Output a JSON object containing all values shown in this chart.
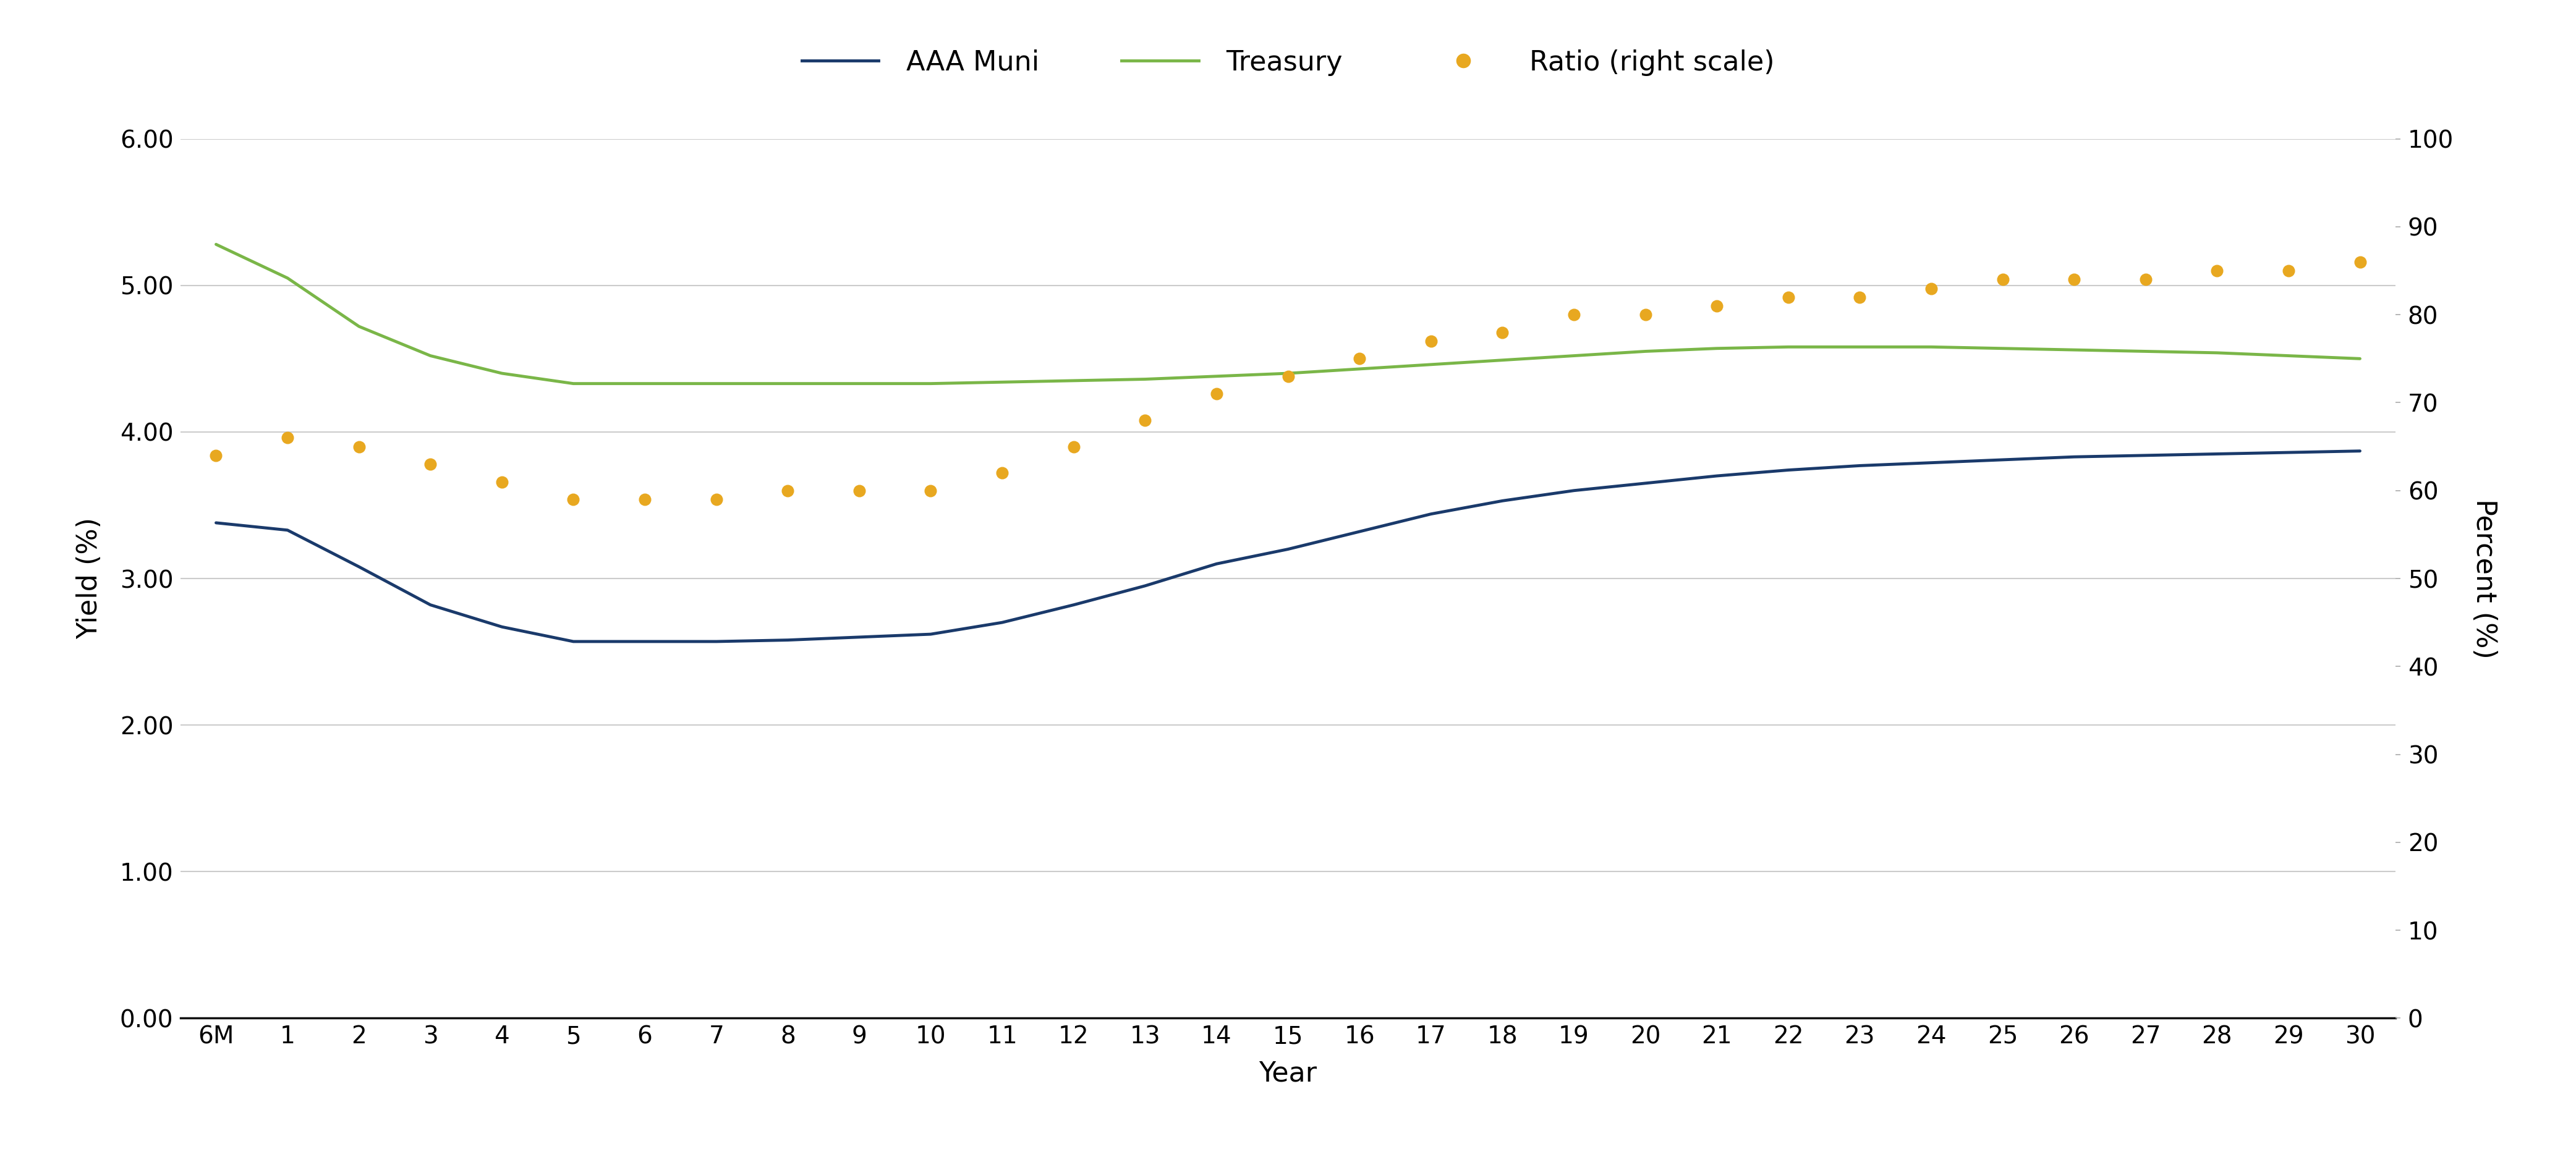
{
  "x_labels": [
    "6M",
    "1",
    "2",
    "3",
    "4",
    "5",
    "6",
    "7",
    "8",
    "9",
    "10",
    "11",
    "12",
    "13",
    "14",
    "15",
    "16",
    "17",
    "18",
    "19",
    "20",
    "21",
    "22",
    "23",
    "24",
    "25",
    "26",
    "27",
    "28",
    "29",
    "30"
  ],
  "x_numeric": [
    0,
    1,
    2,
    3,
    4,
    5,
    6,
    7,
    8,
    9,
    10,
    11,
    12,
    13,
    14,
    15,
    16,
    17,
    18,
    19,
    20,
    21,
    22,
    23,
    24,
    25,
    26,
    27,
    28,
    29,
    30
  ],
  "aaa_muni": [
    3.38,
    3.33,
    3.08,
    2.82,
    2.67,
    2.57,
    2.57,
    2.57,
    2.58,
    2.6,
    2.62,
    2.7,
    2.82,
    2.95,
    3.1,
    3.2,
    3.32,
    3.44,
    3.53,
    3.6,
    3.65,
    3.7,
    3.74,
    3.77,
    3.79,
    3.81,
    3.83,
    3.84,
    3.85,
    3.86,
    3.87
  ],
  "treasury": [
    5.28,
    5.05,
    4.72,
    4.52,
    4.4,
    4.33,
    4.33,
    4.33,
    4.33,
    4.33,
    4.33,
    4.34,
    4.35,
    4.36,
    4.38,
    4.4,
    4.43,
    4.46,
    4.49,
    4.52,
    4.55,
    4.57,
    4.58,
    4.58,
    4.58,
    4.57,
    4.56,
    4.55,
    4.54,
    4.52,
    4.5
  ],
  "ratio": [
    64,
    66,
    65,
    63,
    61,
    59,
    59,
    59,
    60,
    60,
    60,
    62,
    65,
    68,
    71,
    73,
    75,
    77,
    78,
    80,
    80,
    81,
    82,
    82,
    83,
    84,
    84,
    84,
    85,
    85,
    86
  ],
  "aaa_color": "#1a3a6b",
  "treasury_color": "#7ab648",
  "ratio_color": "#e8a820",
  "ylabel_left": "Yield (%)",
  "ylabel_right": "Percent (%)",
  "xlabel": "Year",
  "ylim_left": [
    0.0,
    6.0
  ],
  "ylim_right": [
    0,
    100
  ],
  "yticks_left": [
    0.0,
    1.0,
    2.0,
    3.0,
    4.0,
    5.0,
    6.0
  ],
  "ytick_labels_left": [
    "0.00",
    "1.00",
    "2.00",
    "3.00",
    "4.00",
    "5.00",
    "6.00"
  ],
  "yticks_right": [
    0,
    10,
    20,
    30,
    40,
    50,
    60,
    70,
    80,
    90,
    100
  ],
  "legend_labels": [
    "AAA Muni",
    "Treasury",
    "Ratio (right scale)"
  ],
  "bg_color": "#ffffff",
  "grid_color": "#cccccc",
  "line_width": 3.5,
  "dot_size": 180
}
